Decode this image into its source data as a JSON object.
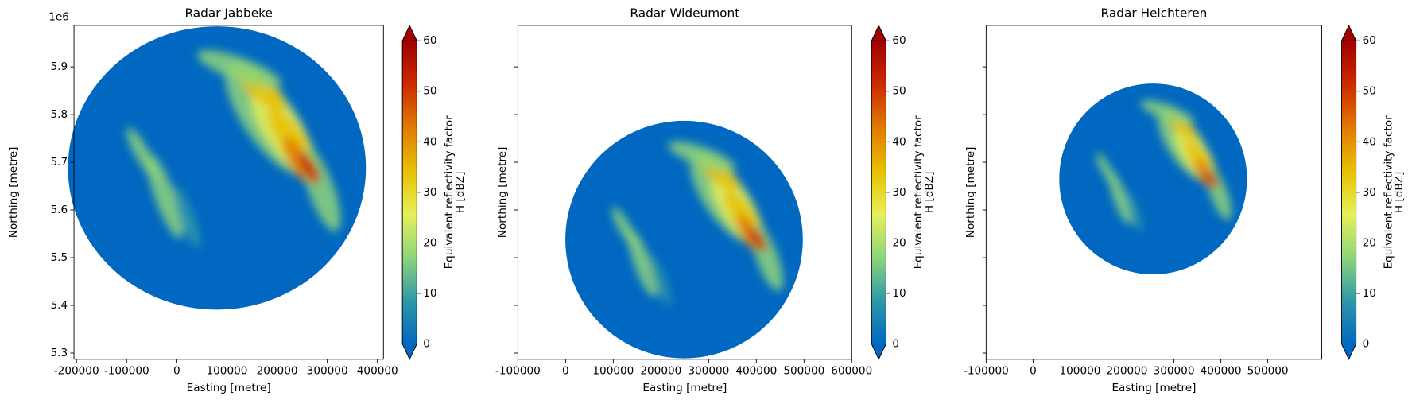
{
  "chart_data": [
    {
      "type": "radar",
      "title": "Radar Jabbeke",
      "xlabel": "Easting [metre]",
      "ylabel": "Northing [metre]",
      "y_offset_label": "1e6",
      "xlim": [
        -205000,
        412000
      ],
      "xticks": [
        -200000,
        -100000,
        0,
        100000,
        200000,
        300000,
        400000
      ],
      "ylim": [
        5287000,
        5987000
      ],
      "yticks": [
        {
          "value": 5300000,
          "label": "5.3"
        },
        {
          "value": 5400000,
          "label": "5.4"
        },
        {
          "value": 5500000,
          "label": "5.5"
        },
        {
          "value": 5600000,
          "label": "5.6"
        },
        {
          "value": 5700000,
          "label": "5.7"
        },
        {
          "value": 5800000,
          "label": "5.8"
        },
        {
          "value": 5900000,
          "label": "5.9"
        }
      ],
      "disc": {
        "center_x": 80000,
        "center_y": 5688000,
        "radius": 297000
      },
      "colorbar": {
        "label": [
          "Equivalent reflectivity factor",
          "H [dBZ]"
        ],
        "lim": [
          0,
          60
        ],
        "ticks": [
          0,
          10,
          20,
          30,
          40,
          50,
          60
        ],
        "extend": "both",
        "colors": [
          "#0068c0",
          "#2f98a8",
          "#8fd57a",
          "#e6f05a",
          "#e8c000",
          "#e07a00",
          "#cc2a00",
          "#a00000"
        ]
      }
    },
    {
      "type": "radar",
      "title": "Radar Wideumont",
      "xlabel": "Easting [metre]",
      "ylabel": "Northing [metre]",
      "xlim": [
        -100000,
        600000
      ],
      "xticks": [
        -100000,
        0,
        100000,
        200000,
        300000,
        400000,
        500000,
        600000
      ],
      "ylim": [
        5287000,
        5987000
      ],
      "yticks": [
        5300000,
        5400000,
        5500000,
        5600000,
        5700000,
        5800000,
        5900000
      ],
      "disc": {
        "center_x": 248500,
        "center_y": 5538000,
        "radius": 249000
      },
      "colorbar": {
        "label": [
          "Equivalent reflectivity factor",
          "H [dBZ]"
        ],
        "lim": [
          0,
          60
        ],
        "ticks": [
          0,
          10,
          20,
          30,
          40,
          50,
          60
        ],
        "extend": "both",
        "colors": [
          "#0068c0",
          "#2f98a8",
          "#8fd57a",
          "#e6f05a",
          "#e8c000",
          "#e07a00",
          "#cc2a00",
          "#a00000"
        ]
      }
    },
    {
      "type": "radar",
      "title": "Radar Helchteren",
      "xlabel": "Easting [metre]",
      "ylabel": "Northing [metre]",
      "xlim": [
        -100000,
        615000
      ],
      "xticks": [
        -100000,
        0,
        100000,
        200000,
        300000,
        400000,
        500000
      ],
      "ylim": [
        5287000,
        5987000
      ],
      "yticks": [
        5300000,
        5400000,
        5500000,
        5600000,
        5700000,
        5800000,
        5900000
      ],
      "disc": {
        "center_x": 255700,
        "center_y": 5665000,
        "radius": 200000
      },
      "colorbar": {
        "label": [
          "Equivalent reflectivity factor",
          "H [dBZ]"
        ],
        "lim": [
          0,
          60
        ],
        "ticks": [
          0,
          10,
          20,
          30,
          40,
          50,
          60
        ],
        "extend": "both",
        "colors": [
          "#0068c0",
          "#2f98a8",
          "#8fd57a",
          "#e6f05a",
          "#e8c000",
          "#e07a00",
          "#cc2a00",
          "#a00000"
        ]
      }
    }
  ]
}
